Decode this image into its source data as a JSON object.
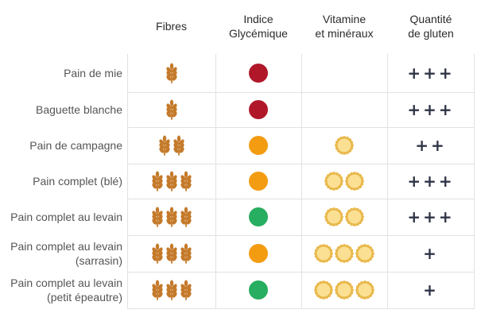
{
  "headers": {
    "fibres": "Fibres",
    "ig": "Indice\nGlycémique",
    "vitamines": "Vitamine\net minéraux",
    "gluten": "Quantité\nde gluten"
  },
  "colors": {
    "wheat": "#c47a2a",
    "sun_fill": "#fbe093",
    "sun_edge": "#e9b94d",
    "ig_high": "#b0182a",
    "ig_medium": "#f39c12",
    "ig_low": "#27ae60",
    "gluten_text": "#2f3447"
  },
  "icons": {
    "fibre": "wheat-icon",
    "vitamin": "sun-icon"
  },
  "rows": [
    {
      "label": "Pain de mie",
      "fibres": 1,
      "ig": "high",
      "vitamines": 0,
      "gluten": "+++"
    },
    {
      "label": "Baguette blanche",
      "fibres": 1,
      "ig": "high",
      "vitamines": 0,
      "gluten": "+++"
    },
    {
      "label": "Pain de campagne",
      "fibres": 2,
      "ig": "medium",
      "vitamines": 1,
      "gluten": "++"
    },
    {
      "label": "Pain complet (blé)",
      "fibres": 3,
      "ig": "medium",
      "vitamines": 2,
      "gluten": "+++"
    },
    {
      "label": "Pain complet au levain",
      "fibres": 3,
      "ig": "low",
      "vitamines": 2,
      "gluten": "+++"
    },
    {
      "label": "Pain complet au levain\n(sarrasin)",
      "fibres": 3,
      "ig": "medium",
      "vitamines": 3,
      "gluten": "+"
    },
    {
      "label": "Pain complet au levain\n(petit épeautre)",
      "fibres": 3,
      "ig": "low",
      "vitamines": 3,
      "gluten": "+"
    }
  ]
}
